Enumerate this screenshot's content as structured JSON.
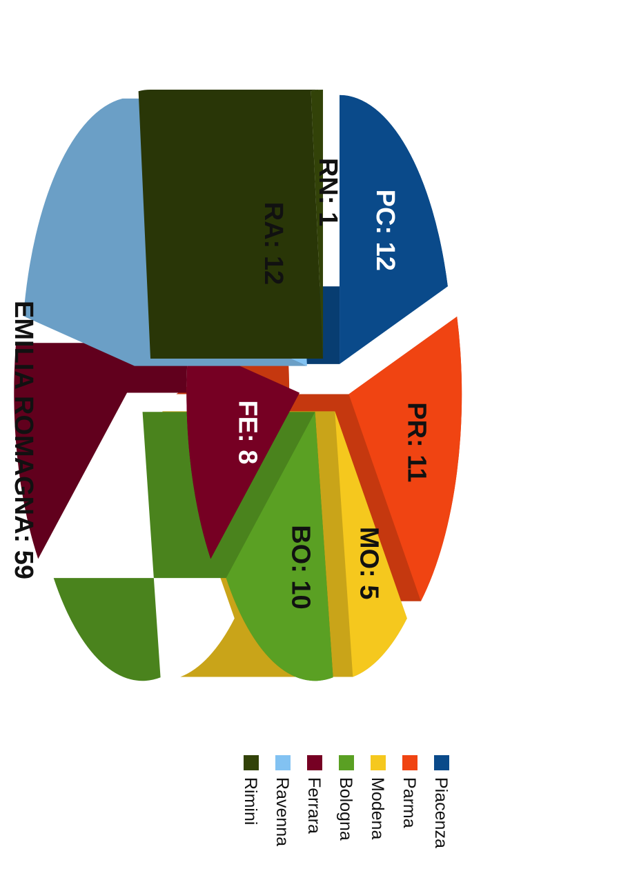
{
  "chart_data": {
    "type": "pie",
    "title": "EMILIA ROMAGNA: 59",
    "total": 59,
    "slices": [
      {
        "code": "PC",
        "name": "Piacenza",
        "value": 12,
        "label": "PC: 12",
        "color": "#0a4a8a",
        "label_color": "#ffffff"
      },
      {
        "code": "PR",
        "name": "Parma",
        "value": 11,
        "label": "PR: 11",
        "color": "#f04412",
        "label_color": "#111111"
      },
      {
        "code": "MO",
        "name": "Modena",
        "value": 5,
        "label": "MO: 5",
        "color": "#f5c81e",
        "label_color": "#111111"
      },
      {
        "code": "BO",
        "name": "Bologna",
        "value": 10,
        "label": "BO: 10",
        "color": "#5aa023",
        "label_color": "#111111"
      },
      {
        "code": "FE",
        "name": "Ferrara",
        "value": 8,
        "label": "FE: 8",
        "color": "#760023",
        "label_color": "#ffffff"
      },
      {
        "code": "RA",
        "name": "Ravenna",
        "value": 12,
        "label": "RA: 12",
        "color": "#82c2f2",
        "label_color": "#111111"
      },
      {
        "code": "RN",
        "name": "Rimini",
        "value": 1,
        "label": "RN: 1",
        "color": "#324208",
        "label_color": "#111111"
      }
    ],
    "legend": [
      "Piacenza",
      "Parma",
      "Modena",
      "Bologna",
      "Ferrara",
      "Ravenna",
      "Rimini"
    ],
    "legend_placement": "bottom",
    "style": "3d-exploded",
    "orientation": "rotated-90"
  }
}
